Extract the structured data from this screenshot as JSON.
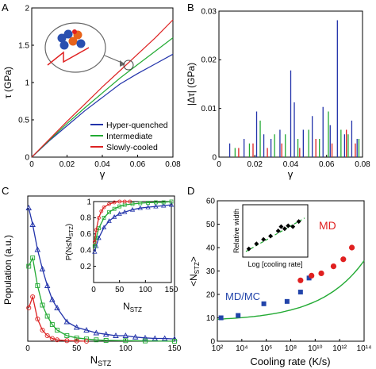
{
  "chart_data": [
    {
      "panel": "A",
      "type": "line",
      "xlabel": "γ",
      "ylabel": "τ (GPa)",
      "xlim": [
        0,
        0.08
      ],
      "ylim": [
        0,
        2.0
      ],
      "xticks": [
        "0",
        "0.02",
        "0.04",
        "0.06",
        "0.08"
      ],
      "yticks": [
        "0",
        "0.5",
        "1",
        "1.5",
        "2"
      ],
      "legend_position": "bottom-right",
      "series": [
        {
          "name": "Hyper-quenched",
          "color": "#2233aa",
          "x": [
            0,
            0.01,
            0.02,
            0.03,
            0.04,
            0.05,
            0.06,
            0.07,
            0.08
          ],
          "y": [
            0,
            0.22,
            0.42,
            0.62,
            0.8,
            0.98,
            1.12,
            1.25,
            1.38
          ]
        },
        {
          "name": "Intermediate",
          "color": "#22aa33",
          "x": [
            0,
            0.01,
            0.02,
            0.03,
            0.04,
            0.05,
            0.06,
            0.07,
            0.08
          ],
          "y": [
            0,
            0.23,
            0.45,
            0.66,
            0.86,
            1.06,
            1.24,
            1.42,
            1.6
          ]
        },
        {
          "name": "Slowly-cooled",
          "color": "#dd2222",
          "x": [
            0,
            0.01,
            0.02,
            0.03,
            0.04,
            0.05,
            0.06,
            0.07,
            0.08
          ],
          "y": [
            0,
            0.24,
            0.48,
            0.71,
            0.94,
            1.16,
            1.38,
            1.6,
            1.84
          ]
        }
      ]
    },
    {
      "panel": "B",
      "type": "bar",
      "xlabel": "γ",
      "ylabel": "|Δτ| (GPa)",
      "xlim": [
        0,
        0.08
      ],
      "ylim": [
        0,
        0.032
      ],
      "xticks": [
        "0",
        "0.02",
        "0.04",
        "0.06",
        "0.08"
      ],
      "yticks": [
        "0",
        "0.01",
        "0.02",
        "0.03"
      ],
      "series": [
        {
          "name": "Hyper-quenched",
          "color": "#2233aa",
          "x": [
            0.006,
            0.014,
            0.021,
            0.025,
            0.029,
            0.034,
            0.04,
            0.042,
            0.047,
            0.052,
            0.058,
            0.062,
            0.066,
            0.07,
            0.074,
            0.077
          ],
          "y": [
            0.003,
            0.004,
            0.01,
            0.005,
            0.004,
            0.006,
            0.019,
            0.012,
            0.006,
            0.009,
            0.011,
            0.007,
            0.03,
            0.005,
            0.008,
            0.004
          ]
        },
        {
          "name": "Intermediate",
          "color": "#22aa33",
          "x": [
            0.009,
            0.017,
            0.023,
            0.031,
            0.037,
            0.044,
            0.05,
            0.056,
            0.061,
            0.068,
            0.072,
            0.078
          ],
          "y": [
            0.002,
            0.003,
            0.008,
            0.005,
            0.005,
            0.004,
            0.006,
            0.004,
            0.01,
            0.006,
            0.005,
            0.004
          ]
        },
        {
          "name": "Slowly-cooled",
          "color": "#dd2222",
          "x": [
            0.011,
            0.019,
            0.027,
            0.035,
            0.045,
            0.054,
            0.063,
            0.071,
            0.076
          ],
          "y": [
            0.002,
            0.003,
            0.002,
            0.003,
            0.002,
            0.004,
            0.003,
            0.006,
            0.003
          ]
        }
      ]
    },
    {
      "panel": "C",
      "type": "scatter",
      "xlabel": "N_STZ",
      "ylabel": "Population (a.u.)",
      "xlim": [
        0,
        150
      ],
      "ylim": [
        0,
        50
      ],
      "xticks": [
        "0",
        "50",
        "100",
        "150"
      ],
      "series": [
        {
          "name": "Hyper-quenched",
          "color": "#2233aa",
          "x": [
            1,
            5,
            10,
            15,
            20,
            25,
            30,
            40,
            50,
            60,
            70,
            80,
            90,
            100,
            110,
            120,
            130,
            140,
            150
          ],
          "y": [
            48,
            42,
            33,
            26,
            20,
            15,
            12,
            7,
            5,
            4,
            3,
            2.5,
            2,
            2,
            1.5,
            1.2,
            1,
            1,
            0.8
          ]
        },
        {
          "name": "Intermediate",
          "color": "#22aa33",
          "x": [
            1,
            5,
            10,
            15,
            20,
            25,
            30,
            40,
            50,
            60,
            70,
            80,
            100,
            120,
            150
          ],
          "y": [
            27,
            30,
            20,
            13,
            9,
            6,
            4,
            2,
            1.2,
            0.8,
            0.5,
            0.3,
            0.2,
            0.1,
            0
          ]
        },
        {
          "name": "Slowly-cooled",
          "color": "#dd2222",
          "x": [
            1,
            5,
            10,
            15,
            20,
            25,
            30,
            40,
            50,
            60
          ],
          "y": [
            12,
            16,
            8,
            4,
            2,
            1,
            0.5,
            0.2,
            0.1,
            0
          ]
        }
      ],
      "inset": {
        "xlabel": "N_STZ",
        "ylabel": "P(N≤N_STZ)",
        "xlim": [
          0,
          150
        ],
        "ylim": [
          0,
          1
        ],
        "xticks": [
          "0",
          "50",
          "100",
          "150"
        ],
        "yticks": [
          "0",
          "0.2",
          "0.4",
          "0.6",
          "0.8",
          "1"
        ],
        "series": [
          {
            "name": "Hyper-quenched",
            "color": "#2233aa",
            "x": [
              2,
              5,
              10,
              20,
              30,
              40,
              50,
              60,
              75,
              90,
              105,
              120,
              135,
              150
            ],
            "y": [
              0.38,
              0.45,
              0.55,
              0.68,
              0.76,
              0.81,
              0.85,
              0.87,
              0.9,
              0.92,
              0.93,
              0.94,
              0.95,
              0.96
            ]
          },
          {
            "name": "Intermediate",
            "color": "#22aa33",
            "x": [
              2,
              5,
              10,
              20,
              30,
              40,
              50,
              60,
              75,
              90,
              105,
              120,
              135,
              150
            ],
            "y": [
              0.45,
              0.55,
              0.67,
              0.8,
              0.87,
              0.91,
              0.94,
              0.96,
              0.97,
              0.98,
              0.985,
              0.99,
              0.99,
              1.0
            ]
          },
          {
            "name": "Slowly-cooled",
            "color": "#dd2222",
            "x": [
              2,
              5,
              10,
              15,
              20,
              30,
              40,
              50,
              60,
              70
            ],
            "y": [
              0.5,
              0.65,
              0.8,
              0.88,
              0.93,
              0.97,
              0.99,
              1.0,
              1.0,
              1.0
            ]
          }
        ]
      }
    },
    {
      "panel": "D",
      "type": "scatter",
      "xlabel": "Cooling rate (K/s)",
      "ylabel": "<N_STZ>",
      "xscale": "log",
      "xlim_exponent": [
        2,
        14
      ],
      "ylim": [
        0,
        60
      ],
      "xticks": [
        "10²",
        "10⁴",
        "10⁶",
        "10⁸",
        "10¹⁰",
        "10¹²",
        "10¹⁴"
      ],
      "yticks": [
        "0",
        "10",
        "20",
        "30",
        "40",
        "50",
        "60"
      ],
      "annotations": [
        "MD",
        "MD/MC"
      ],
      "series": [
        {
          "name": "MD/MC",
          "color": "#2244aa",
          "marker": "square",
          "x_exponent": [
            2.3,
            3.7,
            5.8,
            7.7,
            8.8,
            9.5
          ],
          "y": [
            10,
            11,
            16,
            17,
            21,
            27
          ]
        },
        {
          "name": "MD",
          "color": "#e02020",
          "marker": "circle",
          "x_exponent": [
            8.8,
            9.7,
            10.5,
            11.5,
            12.3,
            13.0
          ],
          "y": [
            26,
            28,
            29,
            32,
            35,
            40
          ]
        }
      ],
      "fit_color": "#22aa33",
      "inset": {
        "xlabel": "Log [cooling rate]",
        "ylabel": "Relative width",
        "points": [
          [
            0.05,
            0.08
          ],
          [
            0.18,
            0.2
          ],
          [
            0.3,
            0.3
          ],
          [
            0.42,
            0.38
          ],
          [
            0.55,
            0.5
          ],
          [
            0.6,
            0.6
          ],
          [
            0.66,
            0.55
          ],
          [
            0.72,
            0.62
          ],
          [
            0.8,
            0.6
          ],
          [
            0.9,
            0.72
          ]
        ]
      }
    }
  ],
  "panel_labels": [
    "A",
    "B",
    "C",
    "D"
  ]
}
